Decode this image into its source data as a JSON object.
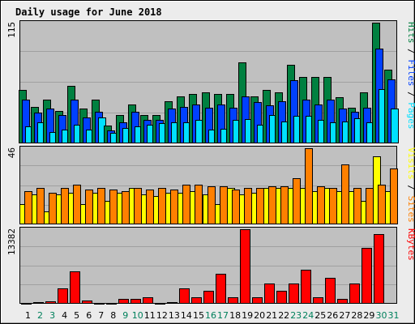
{
  "title": "Daily usage for June 2018",
  "colors": {
    "frame_bg": "#ececec",
    "panel_bg": "#c0c0c0",
    "title_color": "#0000ff",
    "hits": "#008040",
    "files": "#0040ff",
    "pages": "#00e0ff",
    "visits": "#ffff00",
    "sites": "#ff8000",
    "kbytes": "#ff0000",
    "weekend_label": "#00805c"
  },
  "chart_data": [
    {
      "type": "bar",
      "panel": "hits-files-pages",
      "categories": [
        "1",
        "2",
        "3",
        "4",
        "5",
        "6",
        "7",
        "8",
        "9",
        "10",
        "11",
        "12",
        "13",
        "14",
        "15",
        "16",
        "17",
        "18",
        "19",
        "20",
        "21",
        "22",
        "23",
        "24",
        "25",
        "26",
        "27",
        "28",
        "29",
        "30",
        "31"
      ],
      "ymax_label": "115",
      "ymax": 115,
      "legend": [
        {
          "text": "Pages",
          "color": "#00e0ff"
        },
        {
          "text": " / ",
          "color": "#000000"
        },
        {
          "text": "Files",
          "color": "#0040ff"
        },
        {
          "text": " / ",
          "color": "#000000"
        },
        {
          "text": "Hits",
          "color": "#008040"
        }
      ],
      "series": [
        {
          "name": "Hits",
          "color": "#008040",
          "values": [
            51,
            35,
            42,
            31,
            55,
            33,
            42,
            17,
            27,
            37,
            27,
            27,
            40,
            45,
            47,
            49,
            47,
            47,
            77,
            45,
            51,
            49,
            75,
            63,
            63,
            63,
            44,
            34,
            49,
            115,
            70
          ]
        },
        {
          "name": "Files",
          "color": "#0040ff",
          "values": [
            42,
            29,
            33,
            27,
            42,
            25,
            30,
            12,
            20,
            30,
            22,
            22,
            33,
            35,
            37,
            34,
            37,
            34,
            45,
            39,
            36,
            40,
            60,
            42,
            37,
            42,
            33,
            30,
            34,
            90,
            61
          ]
        },
        {
          "name": "Pages",
          "color": "#00e0ff",
          "values": [
            16,
            20,
            11,
            13,
            18,
            13,
            25,
            10,
            15,
            16,
            18,
            19,
            20,
            20,
            22,
            13,
            14,
            22,
            23,
            18,
            27,
            21,
            26,
            26,
            22,
            20,
            21,
            24,
            20,
            52,
            33
          ]
        }
      ]
    },
    {
      "type": "bar",
      "panel": "sites-visits",
      "categories": [
        "1",
        "2",
        "3",
        "4",
        "5",
        "6",
        "7",
        "8",
        "9",
        "10",
        "11",
        "12",
        "13",
        "14",
        "15",
        "16",
        "17",
        "18",
        "19",
        "20",
        "21",
        "22",
        "23",
        "24",
        "25",
        "26",
        "27",
        "28",
        "29",
        "30",
        "31"
      ],
      "ymax_label": "46",
      "ymax": 46,
      "legend": [
        {
          "text": "Sites",
          "color": "#ff8000"
        },
        {
          "text": " / ",
          "color": "#000000"
        },
        {
          "text": "Visits",
          "color": "#ffff00"
        }
      ],
      "series": [
        {
          "name": "Visits",
          "color": "#ffff00",
          "values": [
            12,
            18,
            8,
            18,
            19,
            12,
            19,
            14,
            19,
            22,
            18,
            17,
            19,
            19,
            20,
            18,
            12,
            22,
            18,
            19,
            22,
            22,
            22,
            22,
            20,
            22,
            20,
            20,
            14,
            41,
            20
          ]
        },
        {
          "name": "Sites",
          "color": "#ff8000",
          "values": [
            20,
            22,
            19,
            22,
            24,
            21,
            22,
            21,
            20,
            22,
            21,
            22,
            21,
            24,
            24,
            23,
            23,
            21,
            22,
            22,
            23,
            23,
            28,
            46,
            23,
            22,
            36,
            22,
            22,
            24,
            34
          ]
        }
      ]
    },
    {
      "type": "bar",
      "panel": "kbytes",
      "categories": [
        "1",
        "2",
        "3",
        "4",
        "5",
        "6",
        "7",
        "8",
        "9",
        "10",
        "11",
        "12",
        "13",
        "14",
        "15",
        "16",
        "17",
        "18",
        "19",
        "20",
        "21",
        "22",
        "23",
        "24",
        "25",
        "26",
        "27",
        "28",
        "29",
        "30",
        "31"
      ],
      "ymax_label": "13382",
      "ymax": 13382,
      "legend": [
        {
          "text": "KBytes",
          "color": "#ff0000"
        }
      ],
      "series": [
        {
          "name": "KBytes",
          "color": "#ff0000",
          "values": [
            180,
            260,
            450,
            2740,
            5880,
            640,
            180,
            180,
            900,
            830,
            1120,
            180,
            270,
            2770,
            1210,
            2310,
            5330,
            1170,
            13382,
            1170,
            3600,
            2310,
            3600,
            6070,
            1170,
            4660,
            900,
            3570,
            10070,
            12500,
            0
          ]
        }
      ]
    }
  ],
  "x_labels": [
    {
      "text": "1",
      "weekend": false
    },
    {
      "text": "2",
      "weekend": true
    },
    {
      "text": "3",
      "weekend": true
    },
    {
      "text": "4",
      "weekend": false
    },
    {
      "text": "5",
      "weekend": false
    },
    {
      "text": "6",
      "weekend": false
    },
    {
      "text": "7",
      "weekend": false
    },
    {
      "text": "8",
      "weekend": false
    },
    {
      "text": "9",
      "weekend": true
    },
    {
      "text": "10",
      "weekend": true
    },
    {
      "text": "11",
      "weekend": false
    },
    {
      "text": "12",
      "weekend": false
    },
    {
      "text": "13",
      "weekend": false
    },
    {
      "text": "14",
      "weekend": false
    },
    {
      "text": "15",
      "weekend": false
    },
    {
      "text": "16",
      "weekend": true
    },
    {
      "text": "17",
      "weekend": true
    },
    {
      "text": "18",
      "weekend": false
    },
    {
      "text": "19",
      "weekend": false
    },
    {
      "text": "20",
      "weekend": false
    },
    {
      "text": "21",
      "weekend": false
    },
    {
      "text": "22",
      "weekend": false
    },
    {
      "text": "23",
      "weekend": true
    },
    {
      "text": "24",
      "weekend": true
    },
    {
      "text": "25",
      "weekend": false
    },
    {
      "text": "26",
      "weekend": false
    },
    {
      "text": "27",
      "weekend": false
    },
    {
      "text": "28",
      "weekend": false
    },
    {
      "text": "29",
      "weekend": false
    },
    {
      "text": "30",
      "weekend": true
    },
    {
      "text": "31",
      "weekend": true
    }
  ]
}
